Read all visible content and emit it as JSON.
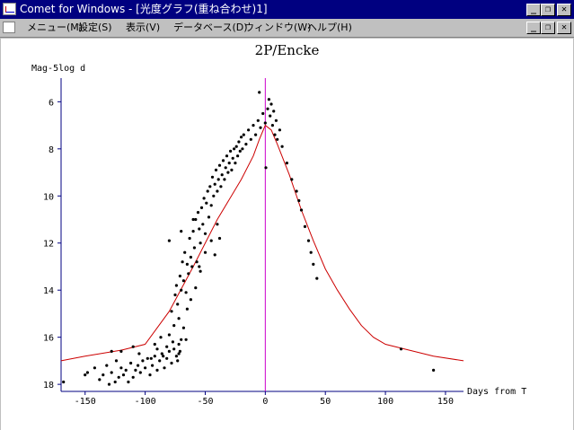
{
  "window": {
    "title": "Comet for Windows - [光度グラフ(重ね合わせ)1]",
    "controls": [
      "_",
      "❐",
      "✕"
    ]
  },
  "menu": {
    "items": [
      "メニュー(M)",
      "設定(S)",
      "表示(V)",
      "データベース(D)",
      "ウィンドウ(W)",
      "ヘルプ(H)"
    ],
    "doc_controls": [
      "_",
      "❐",
      "✕"
    ]
  },
  "colors": {
    "zero_line": "#cc00cc",
    "model_curve": "#cc0000",
    "axis": "#000080",
    "points": "#000000"
  },
  "chart_data": {
    "type": "scatter",
    "title": "2P/Encke",
    "ylabel": "Mag-5log d",
    "xlabel": "Days from T",
    "xlim": [
      -170,
      165
    ],
    "ylim": [
      18.3,
      5.3
    ],
    "y_inverted": true,
    "xticks": [
      -150,
      -100,
      -50,
      0,
      50,
      100,
      150
    ],
    "yticks": [
      6,
      8,
      10,
      12,
      14,
      16,
      18
    ],
    "vertical_marker_x": 0,
    "model_curve": {
      "x": [
        -170,
        -150,
        -120,
        -100,
        -80,
        -60,
        -40,
        -20,
        -10,
        -5,
        0,
        5,
        10,
        20,
        30,
        40,
        50,
        60,
        70,
        80,
        90,
        100,
        120,
        140,
        165
      ],
      "y": [
        17.0,
        16.8,
        16.55,
        16.3,
        14.9,
        13.0,
        11.0,
        9.3,
        8.3,
        7.6,
        7.0,
        7.2,
        7.8,
        9.1,
        10.6,
        11.9,
        13.1,
        14.0,
        14.8,
        15.5,
        16.0,
        16.3,
        16.55,
        16.8,
        17.0
      ]
    },
    "points": [
      [
        -168,
        17.9
      ],
      [
        -150,
        17.6
      ],
      [
        -148,
        17.5
      ],
      [
        -142,
        17.3
      ],
      [
        -138,
        17.8
      ],
      [
        -135,
        17.6
      ],
      [
        -132,
        17.2
      ],
      [
        -130,
        18.0
      ],
      [
        -128,
        17.5
      ],
      [
        -125,
        17.9
      ],
      [
        -124,
        17.0
      ],
      [
        -122,
        17.7
      ],
      [
        -120,
        17.3
      ],
      [
        -118,
        17.6
      ],
      [
        -116,
        17.4
      ],
      [
        -114,
        17.9
      ],
      [
        -112,
        17.1
      ],
      [
        -110,
        17.7
      ],
      [
        -108,
        17.4
      ],
      [
        -106,
        17.2
      ],
      [
        -104,
        17.5
      ],
      [
        -102,
        17.0
      ],
      [
        -100,
        17.3
      ],
      [
        -98,
        16.9
      ],
      [
        -96,
        17.6
      ],
      [
        -94,
        17.2
      ],
      [
        -92,
        16.8
      ],
      [
        -90,
        17.4
      ],
      [
        -88,
        17.0
      ],
      [
        -86,
        16.7
      ],
      [
        -84,
        17.3
      ],
      [
        -82,
        16.9
      ],
      [
        -80,
        16.6
      ],
      [
        -78,
        17.1
      ],
      [
        -76,
        16.5
      ],
      [
        -74,
        16.8
      ],
      [
        -73,
        17.0
      ],
      [
        -72,
        16.3
      ],
      [
        -71,
        16.6
      ],
      [
        -70,
        16.1
      ],
      [
        -128,
        16.6
      ],
      [
        -120,
        16.6
      ],
      [
        -110,
        16.4
      ],
      [
        -105,
        16.7
      ],
      [
        -95,
        16.9
      ],
      [
        -90,
        16.5
      ],
      [
        -85,
        16.8
      ],
      [
        -80,
        15.9
      ],
      [
        -78,
        14.9
      ],
      [
        -76,
        15.5
      ],
      [
        -75,
        14.2
      ],
      [
        -74,
        13.8
      ],
      [
        -73,
        14.6
      ],
      [
        -72,
        15.2
      ],
      [
        -71,
        13.4
      ],
      [
        -70,
        14.0
      ],
      [
        -69,
        12.8
      ],
      [
        -68,
        13.6
      ],
      [
        -67,
        12.4
      ],
      [
        -66,
        14.1
      ],
      [
        -65,
        12.9
      ],
      [
        -64,
        13.3
      ],
      [
        -63,
        11.8
      ],
      [
        -62,
        12.6
      ],
      [
        -61,
        13.0
      ],
      [
        -60,
        11.5
      ],
      [
        -59,
        12.2
      ],
      [
        -58,
        11.0
      ],
      [
        -57,
        12.8
      ],
      [
        -56,
        10.7
      ],
      [
        -55,
        11.4
      ],
      [
        -54,
        12.0
      ],
      [
        -53,
        10.5
      ],
      [
        -52,
        11.2
      ],
      [
        -51,
        10.1
      ],
      [
        -50,
        11.6
      ],
      [
        -49,
        10.3
      ],
      [
        -48,
        9.8
      ],
      [
        -47,
        10.9
      ],
      [
        -46,
        9.6
      ],
      [
        -45,
        10.4
      ],
      [
        -44,
        9.2
      ],
      [
        -43,
        10.0
      ],
      [
        -42,
        9.5
      ],
      [
        -41,
        8.9
      ],
      [
        -40,
        9.8
      ],
      [
        -39,
        9.3
      ],
      [
        -38,
        8.7
      ],
      [
        -37,
        9.6
      ],
      [
        -36,
        9.1
      ],
      [
        -35,
        8.5
      ],
      [
        -34,
        9.3
      ],
      [
        -33,
        8.8
      ],
      [
        -32,
        8.3
      ],
      [
        -31,
        9.0
      ],
      [
        -30,
        8.6
      ],
      [
        -29,
        8.1
      ],
      [
        -28,
        8.9
      ],
      [
        -27,
        8.4
      ],
      [
        -26,
        8.0
      ],
      [
        -25,
        8.6
      ],
      [
        -24,
        7.9
      ],
      [
        -23,
        8.3
      ],
      [
        -22,
        7.7
      ],
      [
        -21,
        8.1
      ],
      [
        -20,
        7.5
      ],
      [
        -19,
        8.0
      ],
      [
        -18,
        7.4
      ],
      [
        -16,
        7.8
      ],
      [
        -14,
        7.2
      ],
      [
        -12,
        7.6
      ],
      [
        -10,
        7.0
      ],
      [
        -8,
        7.4
      ],
      [
        -6,
        6.8
      ],
      [
        -5,
        5.6
      ],
      [
        -4,
        7.1
      ],
      [
        -2,
        6.5
      ],
      [
        0,
        6.9
      ],
      [
        0.5,
        8.8
      ],
      [
        2,
        6.3
      ],
      [
        3,
        5.9
      ],
      [
        4,
        6.6
      ],
      [
        5,
        6.1
      ],
      [
        6,
        7.0
      ],
      [
        7,
        6.4
      ],
      [
        8,
        7.4
      ],
      [
        9,
        6.8
      ],
      [
        10,
        7.6
      ],
      [
        12,
        7.2
      ],
      [
        14,
        7.9
      ],
      [
        18,
        8.6
      ],
      [
        22,
        9.3
      ],
      [
        26,
        9.8
      ],
      [
        28,
        10.2
      ],
      [
        30,
        10.6
      ],
      [
        33,
        11.3
      ],
      [
        36,
        11.9
      ],
      [
        38,
        12.4
      ],
      [
        40,
        12.9
      ],
      [
        43,
        13.5
      ],
      [
        -80,
        11.9
      ],
      [
        -70,
        11.5
      ],
      [
        -60,
        11.0
      ],
      [
        -55,
        13.0
      ],
      [
        -50,
        12.4
      ],
      [
        -45,
        11.9
      ],
      [
        -42,
        12.5
      ],
      [
        -40,
        11.2
      ],
      [
        -38,
        11.8
      ],
      [
        -65,
        14.8
      ],
      [
        -68,
        15.6
      ],
      [
        -62,
        14.4
      ],
      [
        -58,
        13.9
      ],
      [
        -54,
        13.2
      ],
      [
        -66,
        16.1
      ],
      [
        -72,
        16.7
      ],
      [
        -77,
        16.2
      ],
      [
        -82,
        16.4
      ],
      [
        -87,
        16.0
      ],
      [
        -92,
        16.3
      ],
      [
        113,
        16.5
      ],
      [
        140,
        17.4
      ]
    ]
  }
}
